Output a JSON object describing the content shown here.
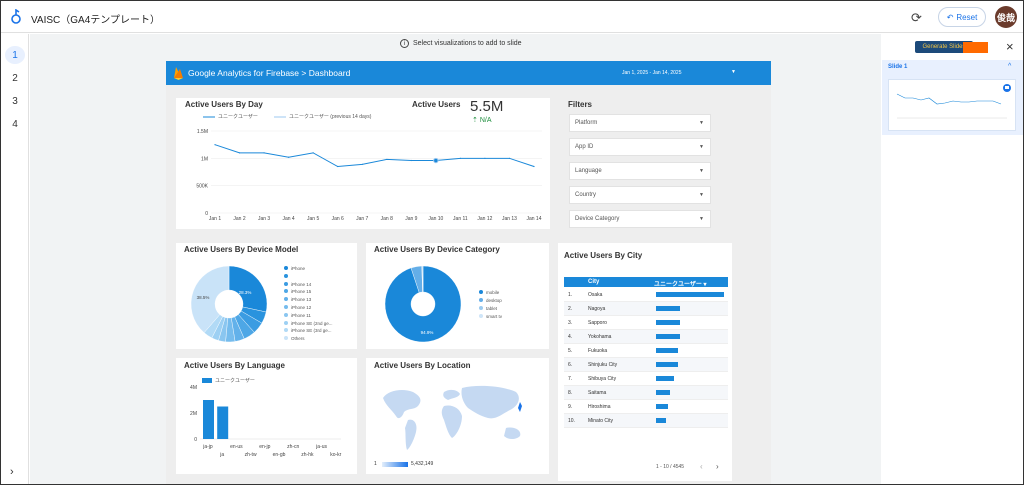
{
  "app": {
    "title": "VAISC（GA4テンプレート）",
    "reset_label": "Reset",
    "avatar_text": "俊哉"
  },
  "left_rail": {
    "slides": [
      "1",
      "2",
      "3",
      "4"
    ],
    "collapse_icon": "›"
  },
  "canvas": {
    "hint": "Select visualizations to add to slide"
  },
  "report": {
    "header_title": "Google Analytics for Firebase > Dashboard",
    "date_range": "Jan 1, 2025 - Jan 14, 2025",
    "active_by_day": {
      "title": "Active Users By Day",
      "legend_current": "ユニークユーザー",
      "legend_previous": "ユニークユーザー (previous 14 days)",
      "y_ticks": [
        "1.5M",
        "1M",
        "500K",
        "0"
      ],
      "x_ticks": [
        "Jan 1",
        "Jan 2",
        "Jan 3",
        "Jan 4",
        "Jan 5",
        "Jan 6",
        "Jan 7",
        "Jan 8",
        "Jan 9",
        "Jan 10",
        "Jan 11",
        "Jan 12",
        "Jan 13",
        "Jan 14"
      ]
    },
    "active_users_kpi": {
      "title": "Active Users",
      "value": "5.5M",
      "delta": "N/A"
    },
    "filters": {
      "title": "Filters",
      "items": [
        "Platform",
        "App ID",
        "Language",
        "Country",
        "Device Category"
      ]
    },
    "device_model": {
      "title": "Active Users By Device Model",
      "legend": [
        "iPhone",
        "",
        "iPhone 14",
        "iPhone 15",
        "iPhone 13",
        "iPhone 12",
        "iPhone 11",
        "iPhone SE (2nd ge...",
        "iPhone SE (3rd ge...",
        "Others"
      ],
      "label_big": "38.5%",
      "label_small": "28.3%"
    },
    "device_category": {
      "title": "Active Users By Device Category",
      "legend": [
        "mobile",
        "desktop",
        "tablet",
        "smart tv"
      ],
      "label_main": "94.9%"
    },
    "city": {
      "title": "Active Users By City",
      "col_city": "City",
      "col_metric": "ユニークユーザー ▾",
      "rows": [
        {
          "rank": "1.",
          "city": "Osaka"
        },
        {
          "rank": "2.",
          "city": "Nagoya"
        },
        {
          "rank": "3.",
          "city": "Sapporo"
        },
        {
          "rank": "4.",
          "city": "Yokohama"
        },
        {
          "rank": "5.",
          "city": "Fukuoka"
        },
        {
          "rank": "6.",
          "city": "Shinjuku City"
        },
        {
          "rank": "7.",
          "city": "Shibuya City"
        },
        {
          "rank": "8.",
          "city": "Saitama"
        },
        {
          "rank": "9.",
          "city": "Hiroshima"
        },
        {
          "rank": "10.",
          "city": "Minato City"
        }
      ],
      "bar_fractions": [
        1.0,
        0.36,
        0.36,
        0.35,
        0.33,
        0.33,
        0.27,
        0.2,
        0.17,
        0.15
      ],
      "pagination": "1 - 10 / 4545"
    },
    "language": {
      "title": "Active Users By Language",
      "legend": "ユニークユーザー",
      "y_ticks": [
        "4M",
        "2M",
        "0"
      ],
      "x_ticks_top": [
        "ja-jp",
        "en-us",
        "en-jp",
        "zh-cn",
        "ja-us"
      ],
      "x_ticks_bottom": [
        "ja",
        "zh-tw",
        "en-gb",
        "zh-hk",
        "ko-kr"
      ]
    },
    "location": {
      "title": "Active Users By Location",
      "scale_min": "1",
      "scale_max": "5,432,149"
    }
  },
  "side_panel": {
    "generate_label": "Generate Slides",
    "slide_label": "Slide 1"
  },
  "chart_data": [
    {
      "type": "line",
      "title": "Active Users By Day",
      "x": [
        "Jan 1",
        "Jan 2",
        "Jan 3",
        "Jan 4",
        "Jan 5",
        "Jan 6",
        "Jan 7",
        "Jan 8",
        "Jan 9",
        "Jan 10",
        "Jan 11",
        "Jan 12",
        "Jan 13",
        "Jan 14"
      ],
      "series": [
        {
          "name": "ユニークユーザー",
          "values": [
            1250000,
            1100000,
            1100000,
            1020000,
            1100000,
            850000,
            890000,
            980000,
            960000,
            960000,
            1000000,
            1000000,
            1000000,
            850000
          ]
        }
      ],
      "ylim": [
        0,
        1500000
      ],
      "grid": true,
      "legend": "top-left"
    },
    {
      "type": "bar",
      "title": "Active Users By Language",
      "categories": [
        "ja-jp",
        "ja",
        "en-us",
        "zh-tw",
        "en-jp",
        "en-gb",
        "zh-cn",
        "zh-hk",
        "ja-us",
        "ko-kr"
      ],
      "series": [
        {
          "name": "ユニークユーザー",
          "values": [
            3000000,
            2500000,
            0,
            0,
            0,
            0,
            0,
            0,
            0,
            0
          ]
        }
      ],
      "ylim": [
        0,
        4000000
      ]
    },
    {
      "type": "pie",
      "title": "Active Users By Device Category",
      "categories": [
        "mobile",
        "desktop",
        "tablet",
        "smart tv"
      ],
      "values": [
        94.9,
        4.6,
        0.4,
        0.1
      ]
    },
    {
      "type": "pie",
      "title": "Active Users By Device Model",
      "categories": [
        "iPhone",
        "",
        "iPhone 14",
        "iPhone 15",
        "iPhone 13",
        "iPhone 12",
        "iPhone 11",
        "iPhone SE (2nd ge...",
        "iPhone SE (3rd ge...",
        "Others"
      ],
      "values": [
        28.3,
        5,
        5,
        5,
        4,
        4,
        3,
        3,
        3.9,
        38.5
      ]
    }
  ]
}
